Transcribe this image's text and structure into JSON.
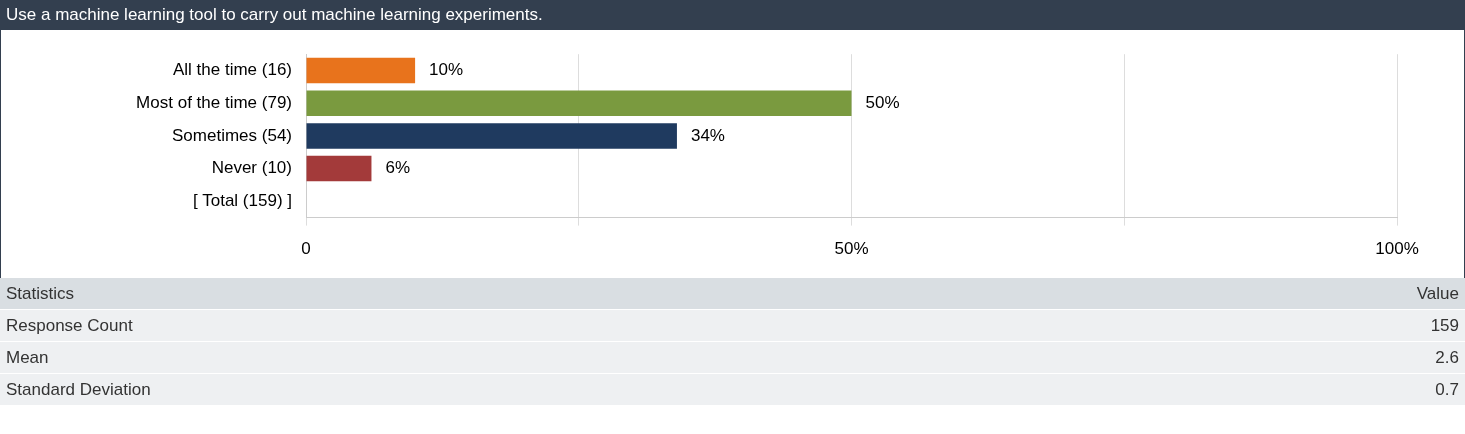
{
  "chart_data": {
    "type": "bar",
    "orientation": "horizontal",
    "title": "Use a machine learning tool to carry out machine learning experiments.",
    "categories": [
      "All the time (16)",
      "Most of the time (79)",
      "Sometimes (54)",
      "Never (10)",
      "[ Total (159) ]"
    ],
    "values": [
      10,
      50,
      34,
      6,
      null
    ],
    "colors": [
      "#e8731c",
      "#7a9a3f",
      "#1f3a5f",
      "#a33a3a",
      "#999999"
    ],
    "value_labels": [
      "10%",
      "50%",
      "34%",
      "6%",
      null
    ],
    "xlim": [
      0,
      100
    ],
    "xticks": [
      {
        "value": 0,
        "label": "0"
      },
      {
        "value": 25,
        "label": null
      },
      {
        "value": 50,
        "label": "50%"
      },
      {
        "value": 75,
        "label": null
      },
      {
        "value": 100,
        "label": "100%"
      }
    ],
    "grid": "x",
    "legend": false,
    "annotations": [
      "Statistics",
      "Value",
      "Response Count",
      "159",
      "Mean",
      "2.6",
      "Standard Deviation",
      "0.7"
    ]
  }
}
